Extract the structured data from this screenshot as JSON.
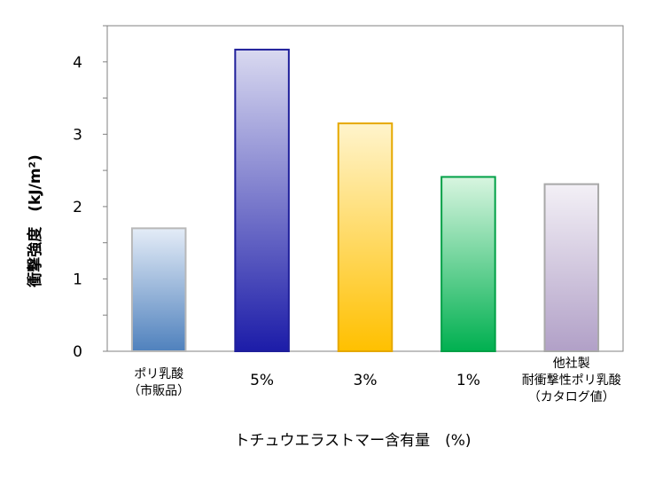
{
  "chart_data": {
    "type": "bar",
    "categories": [
      [
        "ポリ乳酸",
        "（市販品）"
      ],
      [
        "5%"
      ],
      [
        "3%"
      ],
      [
        "1%"
      ],
      [
        "他社製",
        "耐衝撃性ポリ乳酸",
        "（カタログ値）"
      ]
    ],
    "values": [
      1.7,
      4.17,
      3.15,
      2.41,
      2.31
    ],
    "colors": [
      {
        "top": "#e4ecf7",
        "bottom": "#4f81bd",
        "stroke": "#b8b8b8"
      },
      {
        "top": "#d9d9f0",
        "bottom": "#1c1ca8",
        "stroke": "#1f1f9a"
      },
      {
        "top": "#fff4cc",
        "bottom": "#ffc000",
        "stroke": "#e5a800"
      },
      {
        "top": "#d8f5e0",
        "bottom": "#00b050",
        "stroke": "#00a046"
      },
      {
        "top": "#f3f0f6",
        "bottom": "#b1a0c7",
        "stroke": "#a8a8a8"
      }
    ],
    "ylim": [
      0,
      4.5
    ],
    "yticks": [
      0,
      1,
      2,
      3,
      4
    ],
    "y_minor_step": 0.5,
    "ylabel": "衝撃強度　(kJ/m²)",
    "xlabel": "トチュウエラストマー含有量　(%)",
    "grid": false,
    "legend": "none"
  }
}
